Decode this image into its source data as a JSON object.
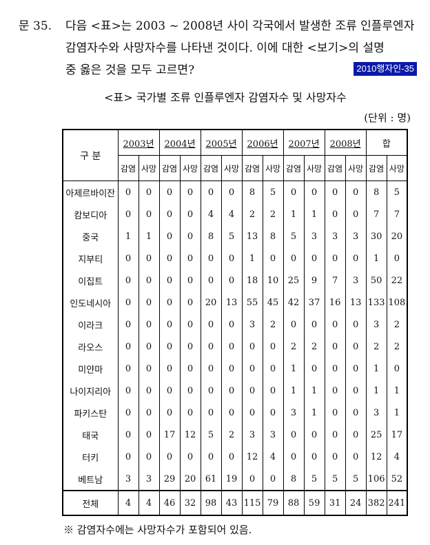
{
  "question": {
    "number": "문 35.",
    "line1": "다음 <표>는 2003 ~ 2008년 사이 각국에서 발생한 조류 인플루엔자",
    "line2": "감염자수와 사망자수를 나타낸 것이다. 이에 대한 <보기>의 설명",
    "line3": "중 옳은 것을 모두 고르면?",
    "badge": "2010행자인-35",
    "badge_color": "#0b1aa6"
  },
  "table": {
    "title": "<표> 국가별 조류 인플루엔자 감염자수 및 사망자수",
    "unit": "(단위 : 명)",
    "corner_label": "구  분",
    "years": [
      "2003년",
      "2004년",
      "2005년",
      "2006년",
      "2007년",
      "2008년",
      "합"
    ],
    "sub_headers": [
      "감염",
      "사망"
    ],
    "rows": [
      {
        "country": "아제르바이잔",
        "values": [
          "0",
          "0",
          "0",
          "0",
          "0",
          "0",
          "8",
          "5",
          "0",
          "0",
          "0",
          "0",
          "8",
          "5"
        ]
      },
      {
        "country": "캄보디아",
        "values": [
          "0",
          "0",
          "0",
          "0",
          "4",
          "4",
          "2",
          "2",
          "1",
          "1",
          "0",
          "0",
          "7",
          "7"
        ]
      },
      {
        "country": "중국",
        "values": [
          "1",
          "1",
          "0",
          "0",
          "8",
          "5",
          "13",
          "8",
          "5",
          "3",
          "3",
          "3",
          "30",
          "20"
        ]
      },
      {
        "country": "지부티",
        "values": [
          "0",
          "0",
          "0",
          "0",
          "0",
          "0",
          "1",
          "0",
          "0",
          "0",
          "0",
          "0",
          "1",
          "0"
        ]
      },
      {
        "country": "이집트",
        "values": [
          "0",
          "0",
          "0",
          "0",
          "0",
          "0",
          "18",
          "10",
          "25",
          "9",
          "7",
          "3",
          "50",
          "22"
        ]
      },
      {
        "country": "인도네시아",
        "values": [
          "0",
          "0",
          "0",
          "0",
          "20",
          "13",
          "55",
          "45",
          "42",
          "37",
          "16",
          "13",
          "133",
          "108"
        ]
      },
      {
        "country": "이라크",
        "values": [
          "0",
          "0",
          "0",
          "0",
          "0",
          "0",
          "3",
          "2",
          "0",
          "0",
          "0",
          "0",
          "3",
          "2"
        ]
      },
      {
        "country": "라오스",
        "values": [
          "0",
          "0",
          "0",
          "0",
          "0",
          "0",
          "0",
          "0",
          "2",
          "2",
          "0",
          "0",
          "2",
          "2"
        ]
      },
      {
        "country": "미얀마",
        "values": [
          "0",
          "0",
          "0",
          "0",
          "0",
          "0",
          "0",
          "0",
          "1",
          "0",
          "0",
          "0",
          "1",
          "0"
        ]
      },
      {
        "country": "나이지리아",
        "values": [
          "0",
          "0",
          "0",
          "0",
          "0",
          "0",
          "0",
          "0",
          "1",
          "1",
          "0",
          "0",
          "1",
          "1"
        ]
      },
      {
        "country": "파키스탄",
        "values": [
          "0",
          "0",
          "0",
          "0",
          "0",
          "0",
          "0",
          "0",
          "3",
          "1",
          "0",
          "0",
          "3",
          "1"
        ]
      },
      {
        "country": "태국",
        "values": [
          "0",
          "0",
          "17",
          "12",
          "5",
          "2",
          "3",
          "3",
          "0",
          "0",
          "0",
          "0",
          "25",
          "17"
        ]
      },
      {
        "country": "터키",
        "values": [
          "0",
          "0",
          "0",
          "0",
          "0",
          "0",
          "12",
          "4",
          "0",
          "0",
          "0",
          "0",
          "12",
          "4"
        ]
      },
      {
        "country": "베트남",
        "values": [
          "3",
          "3",
          "29",
          "20",
          "61",
          "19",
          "0",
          "0",
          "8",
          "5",
          "5",
          "5",
          "106",
          "52"
        ]
      }
    ],
    "total": {
      "country": "전체",
      "values": [
        "4",
        "4",
        "46",
        "32",
        "98",
        "43",
        "115",
        "79",
        "88",
        "59",
        "31",
        "24",
        "382",
        "241"
      ]
    }
  },
  "note": "※  감염자수에는 사망자수가 포함되어 있음."
}
